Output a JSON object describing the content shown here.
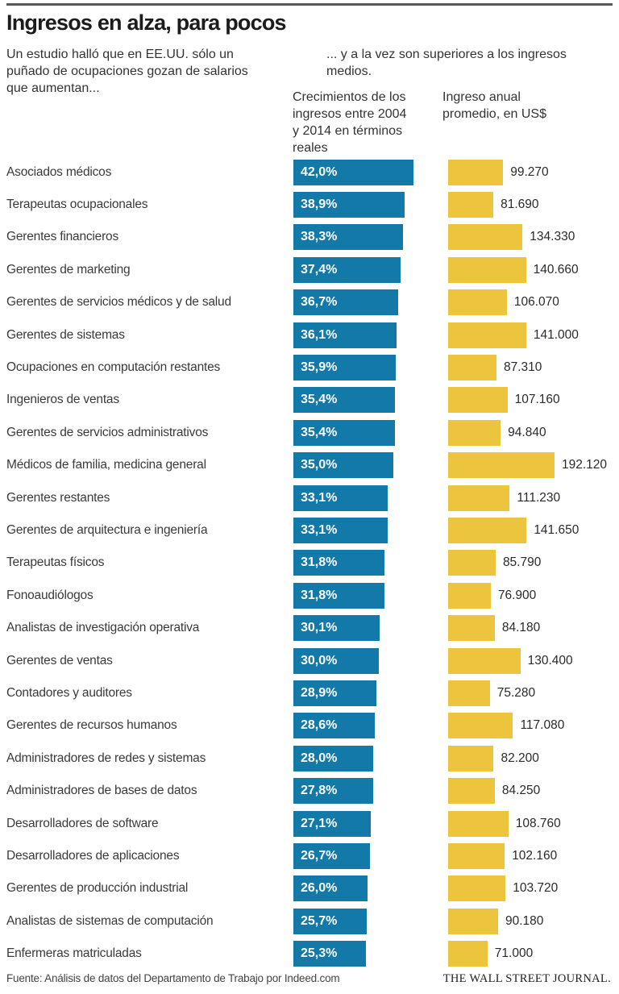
{
  "header": {
    "title": "Ingresos en alza, para pocos",
    "intro_left": "Un estudio halló que en EE.UU. sólo un puñado de ocupaciones gozan de salarios que aumentan...",
    "intro_right": "... y a la vez son superiores a los ingresos medios.",
    "col1_header": "Crecimientos de los ingresos entre 2004 y 2014 en términos reales",
    "col2_header": "Ingreso anual promedio, en US$"
  },
  "footer": {
    "source": "Fuente: Análisis de datos del Departamento de Trabajo por Indeed.com",
    "brand": "THE WALL STREET JOURNAL."
  },
  "colors": {
    "growth_bar": "#1279a9",
    "income_bar": "#ecc43d",
    "bar_value_label": "#ffffff",
    "top_rule": "#595959"
  },
  "chart_data": {
    "type": "bar",
    "orientation": "horizontal",
    "title": "Ingresos en alza, para pocos",
    "grid": false,
    "value_labels": true,
    "categories": [
      "Asociados médicos",
      "Terapeutas ocupacionales",
      "Gerentes financieros",
      "Gerentes de marketing",
      "Gerentes de servicios médicos y de salud",
      "Gerentes de sistemas",
      "Ocupaciones en computación restantes",
      "Ingenieros de ventas",
      "Gerentes de servicios administrativos",
      "Médicos de familia, medicina general",
      "Gerentes restantes",
      "Gerentes de arquitectura e ingeniería",
      "Terapeutas físicos",
      "Fonoaudiólogos",
      "Analistas de investigación operativa",
      "Gerentes de ventas",
      "Contadores y auditores",
      "Gerentes de recursos humanos",
      "Administradores de redes y sistemas",
      "Administradores de bases de datos",
      "Desarrolladores de software",
      "Desarrolladores de aplicaciones",
      "Gerentes de producción industrial",
      "Analistas de sistemas de computación",
      "Enfermeras matriculadas"
    ],
    "series": [
      {
        "name": "Crecimientos de los ingresos entre 2004 y 2014 en términos reales",
        "unit": "%",
        "color": "#1279a9",
        "axis_range": [
          0,
          42.0
        ],
        "values": [
          42.0,
          38.9,
          38.3,
          37.4,
          36.7,
          36.1,
          35.9,
          35.4,
          35.4,
          35.0,
          33.1,
          33.1,
          31.8,
          31.8,
          30.1,
          30.0,
          28.9,
          28.6,
          28.0,
          27.8,
          27.1,
          26.7,
          26.0,
          25.7,
          25.3
        ],
        "labels": [
          "42,0%",
          "38,9%",
          "38,3%",
          "37,4%",
          "36,7%",
          "36,1%",
          "35,9%",
          "35,4%",
          "35,4%",
          "35,0%",
          "33,1%",
          "33,1%",
          "31,8%",
          "31,8%",
          "30,1%",
          "30,0%",
          "28,9%",
          "28,6%",
          "28,0%",
          "27,8%",
          "27,1%",
          "26,7%",
          "26,0%",
          "25,7%",
          "25,3%"
        ]
      },
      {
        "name": "Ingreso anual promedio, en US$",
        "unit": "US$",
        "color": "#ecc43d",
        "axis_range": [
          0,
          192120
        ],
        "values": [
          99270,
          81690,
          134330,
          140660,
          106070,
          141000,
          87310,
          107160,
          94840,
          192120,
          111230,
          141650,
          85790,
          76900,
          84180,
          130400,
          75280,
          117080,
          82200,
          84250,
          108760,
          102160,
          103720,
          90180,
          71000
        ],
        "labels": [
          "99.270",
          "81.690",
          "134.330",
          "140.660",
          "106.070",
          "141.000",
          "87.310",
          "107.160",
          "94.840",
          "192.120",
          "111.230",
          "141.650",
          "85.790",
          "76.900",
          "84.180",
          "130.400",
          "75.280",
          "117.080",
          "82.200",
          "84.250",
          "108.760",
          "102.160",
          "103.720",
          "90.180",
          "71.000"
        ]
      }
    ]
  }
}
